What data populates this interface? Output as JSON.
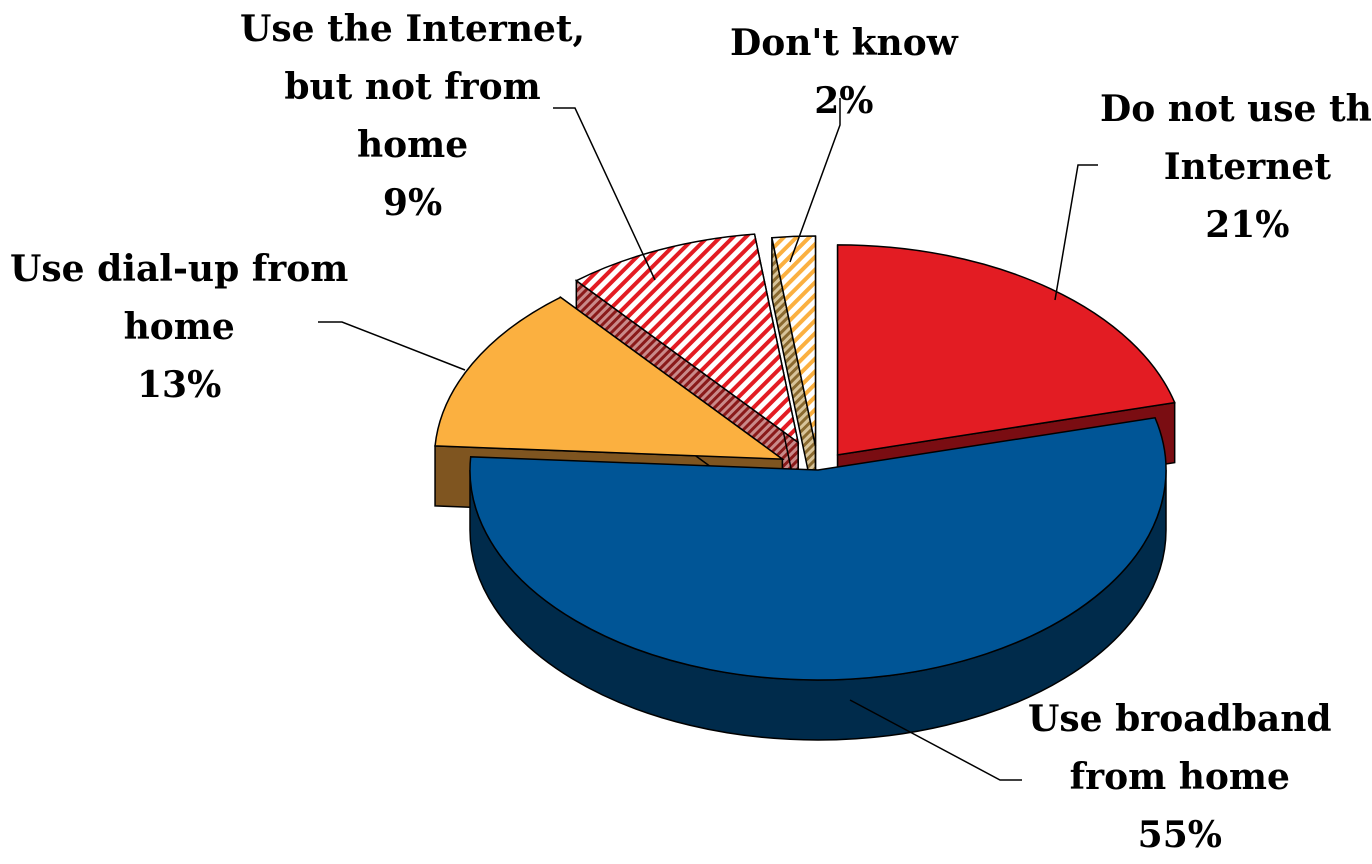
{
  "chart_data": {
    "type": "pie",
    "style": "3d-exploded",
    "title": "",
    "slices": [
      {
        "name_lines": [
          "Do not use the",
          "Internet"
        ],
        "value": 21,
        "value_label": "21%",
        "color": "#e31c23",
        "side_color": "#7a0d12",
        "pattern": "solid"
      },
      {
        "name_lines": [
          "Use broadband",
          "from home"
        ],
        "value": 55,
        "value_label": "55%",
        "color": "#005596",
        "side_color": "#002b4b",
        "pattern": "solid"
      },
      {
        "name_lines": [
          "Use dial-up from",
          "home"
        ],
        "value": 13,
        "value_label": "13%",
        "color": "#fbb040",
        "side_color": "#7f5520",
        "pattern": "solid"
      },
      {
        "name_lines": [
          "Use the Internet,",
          "but not from",
          "home"
        ],
        "value": 9,
        "value_label": "9%",
        "color": "#e31c23",
        "side_color": "#8a1a1a",
        "pattern": "diagonal-hatch"
      },
      {
        "name_lines": [
          "Don't know"
        ],
        "value": 2,
        "value_label": "2%",
        "color": "#fbb040",
        "side_color": "#8a6a30",
        "pattern": "diagonal-hatch"
      }
    ]
  }
}
